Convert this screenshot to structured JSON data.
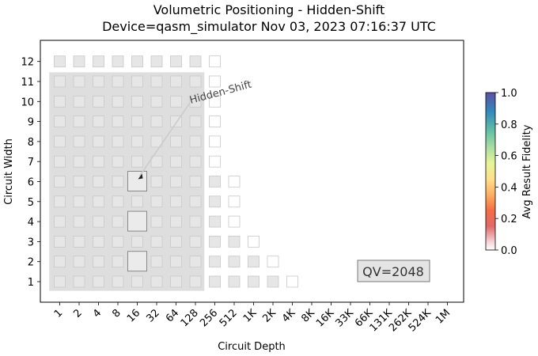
{
  "chart_data": {
    "type": "scatter",
    "title": "Volumetric Positioning - Hidden-Shift",
    "subtitle": "Device=qasm_simulator  Nov 03, 2023 07:16:37 UTC",
    "xlabel": "Circuit Depth",
    "ylabel": "Circuit Width",
    "x_ticks": [
      "1",
      "2",
      "4",
      "8",
      "16",
      "32",
      "64",
      "128",
      "256",
      "512",
      "1K",
      "2K",
      "4K",
      "8K",
      "16K",
      "33K",
      "66K",
      "131K",
      "262K",
      "524K",
      "1M"
    ],
    "y_ticks": [
      "1",
      "2",
      "3",
      "4",
      "5",
      "6",
      "7",
      "8",
      "9",
      "10",
      "11",
      "12"
    ],
    "xscale": "log2",
    "grid": false,
    "quantum_volume_label": "QV=2048",
    "quantum_volume_region": {
      "max_depth_index": 7,
      "max_width": 11
    },
    "annotation": {
      "text": "Hidden-Shift",
      "points_to": {
        "depth": "16",
        "width": 6
      }
    },
    "volumetric_cells": {
      "description_free": true,
      "widths": [
        1,
        2,
        3,
        4,
        5,
        6,
        7,
        8,
        9,
        10,
        11,
        12
      ],
      "max_depth_index_by_width": [
        12,
        11,
        10,
        9,
        9,
        9,
        8,
        8,
        8,
        8,
        8,
        8
      ],
      "filled_max_depth_index_by_width": [
        11,
        10,
        9,
        8,
        8,
        8,
        7,
        7,
        7,
        7,
        7,
        7
      ]
    },
    "series": [
      {
        "name": "Hidden-Shift",
        "points": [
          {
            "depth": "16",
            "width": 2,
            "avg_result_fidelity": 1.0
          },
          {
            "depth": "16",
            "width": 4,
            "avg_result_fidelity": 1.0
          },
          {
            "depth": "16",
            "width": 6,
            "avg_result_fidelity": 1.0
          }
        ]
      }
    ],
    "colorbar": {
      "label": "Avg Result Fidelity",
      "min": 0.0,
      "max": 1.0,
      "ticks": [
        "0.0",
        "0.2",
        "0.4",
        "0.6",
        "0.8",
        "1.0"
      ],
      "colormap": "Spectral"
    }
  }
}
